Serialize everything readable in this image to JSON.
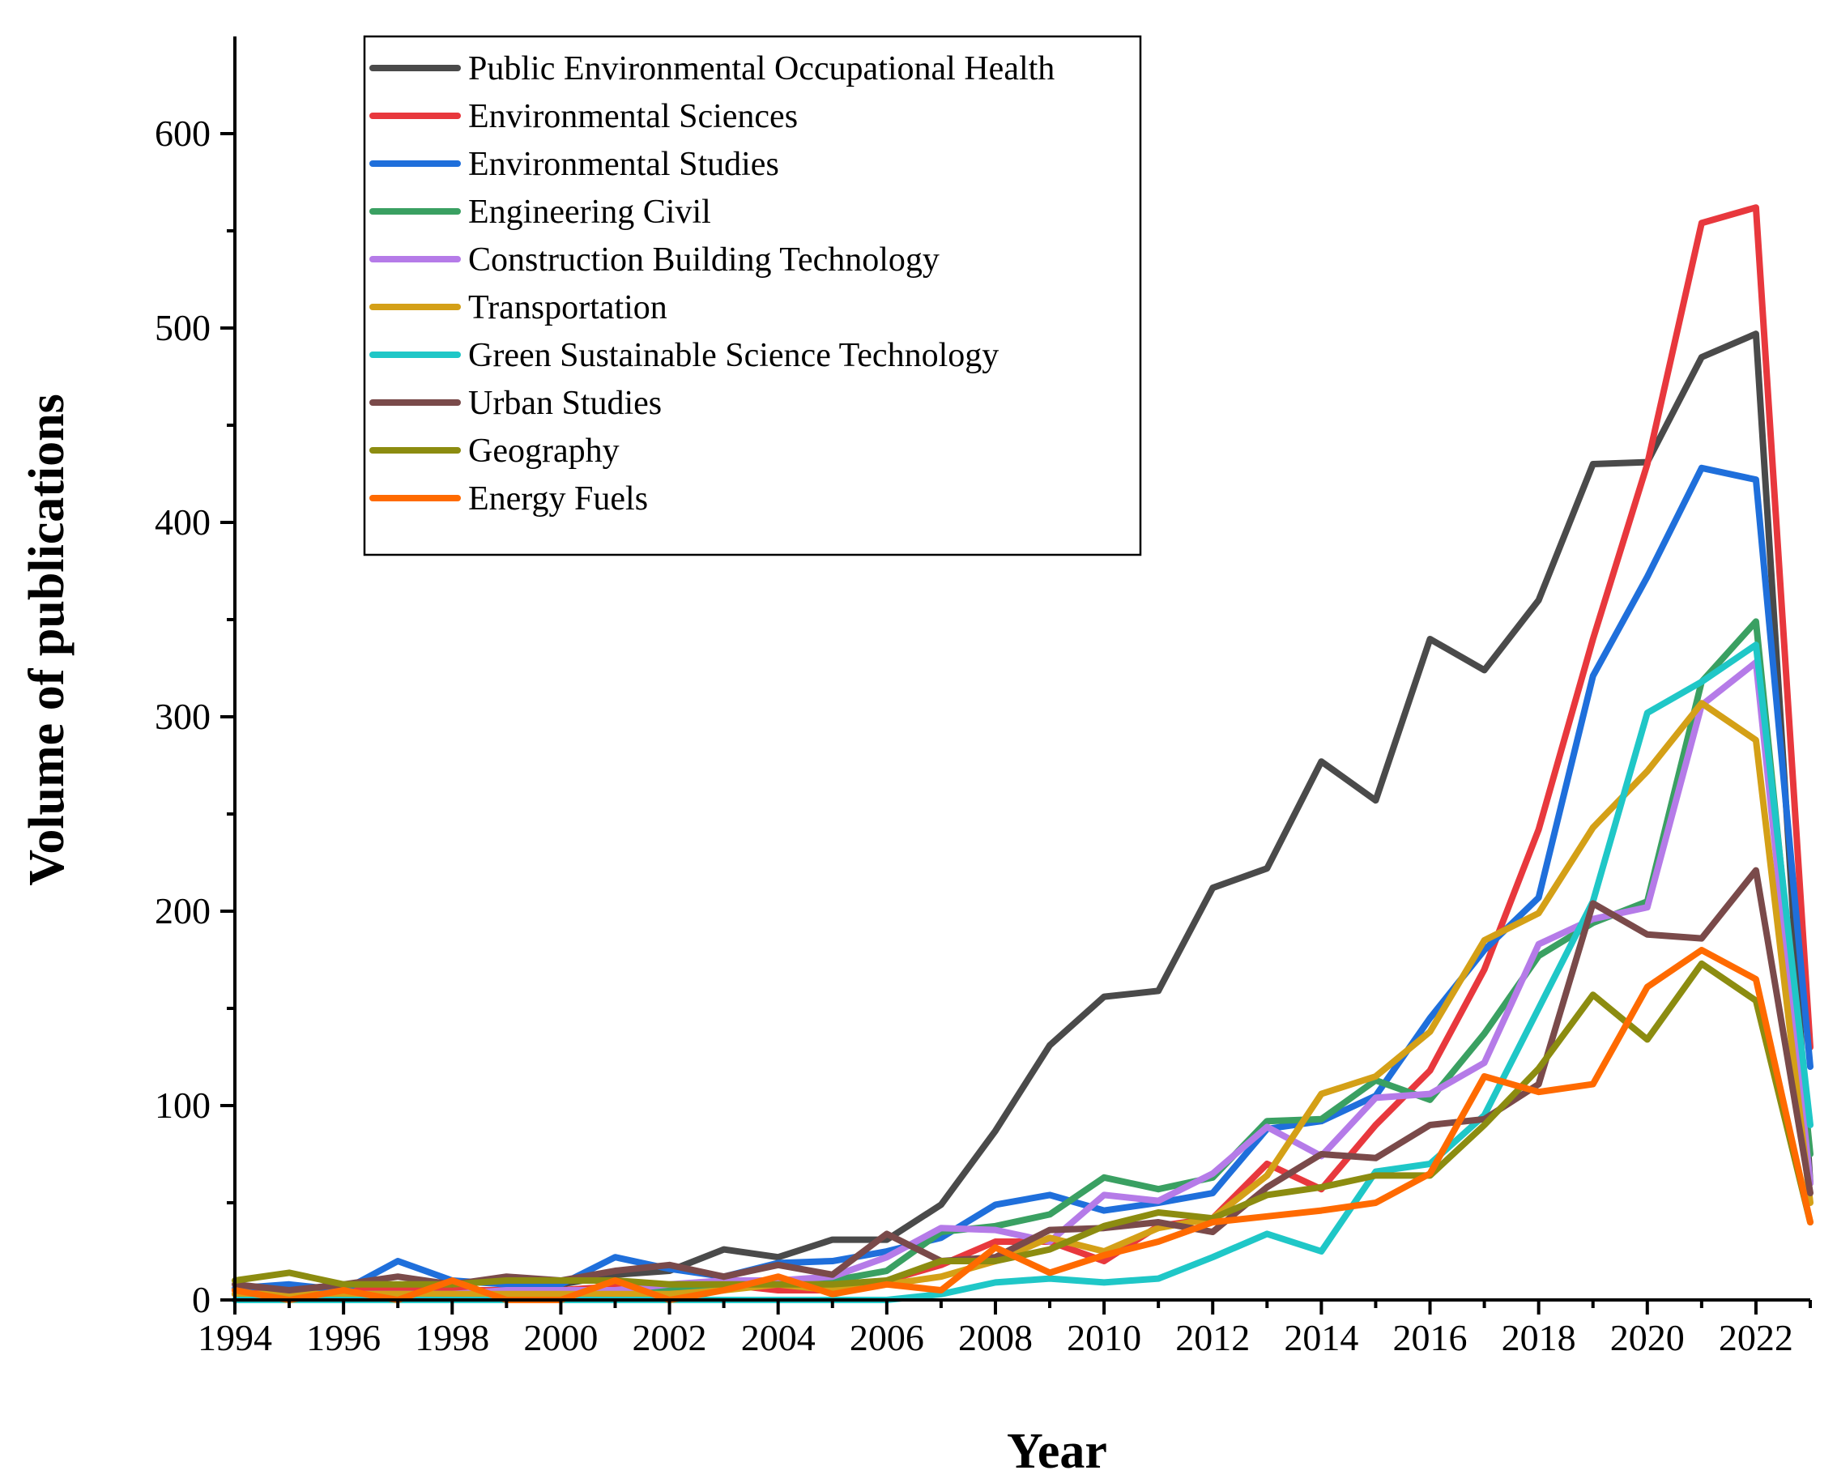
{
  "chart_data": {
    "type": "line",
    "title": "",
    "xlabel": "Year",
    "ylabel": "Volume of publications",
    "xlim": [
      1994,
      2023
    ],
    "ylim": [
      0,
      650
    ],
    "x_ticks": [
      "1994",
      "1996",
      "1998",
      "2000",
      "2002",
      "2004",
      "2006",
      "2008",
      "2010",
      "2012",
      "2014",
      "2016",
      "2018",
      "2020",
      "2022"
    ],
    "y_ticks": [
      "0",
      "100",
      "200",
      "300",
      "400",
      "500",
      "600"
    ],
    "legend_position": "top-left",
    "x": [
      1994,
      1995,
      1996,
      1997,
      1998,
      1999,
      2000,
      2001,
      2002,
      2003,
      2004,
      2005,
      2006,
      2007,
      2008,
      2009,
      2010,
      2011,
      2012,
      2013,
      2014,
      2015,
      2016,
      2017,
      2018,
      2019,
      2020,
      2021,
      2022,
      2023
    ],
    "series": [
      {
        "name": "Public Environmental Occupational Health",
        "color": "#4a4a4a",
        "values": [
          5,
          3,
          8,
          5,
          8,
          10,
          8,
          13,
          15,
          26,
          22,
          31,
          31,
          49,
          87,
          131,
          156,
          159,
          212,
          222,
          277,
          257,
          340,
          324,
          360,
          430,
          431,
          485,
          497,
          60
        ]
      },
      {
        "name": "Environmental Sciences",
        "color": "#e8383d",
        "values": [
          5,
          2,
          5,
          5,
          5,
          5,
          5,
          7,
          5,
          8,
          5,
          5,
          10,
          18,
          30,
          30,
          20,
          38,
          42,
          70,
          57,
          90,
          118,
          170,
          242,
          340,
          430,
          554,
          562,
          130
        ]
      },
      {
        "name": "Environmental Studies",
        "color": "#1f6fdb",
        "values": [
          6,
          8,
          5,
          20,
          10,
          8,
          8,
          22,
          16,
          12,
          19,
          20,
          25,
          32,
          49,
          54,
          46,
          50,
          55,
          88,
          92,
          105,
          145,
          180,
          207,
          321,
          372,
          428,
          422,
          120
        ]
      },
      {
        "name": "Engineering Civil",
        "color": "#3aa062",
        "values": [
          3,
          3,
          3,
          3,
          3,
          3,
          3,
          3,
          5,
          8,
          10,
          10,
          15,
          35,
          38,
          44,
          63,
          57,
          63,
          92,
          93,
          113,
          103,
          137,
          177,
          194,
          205,
          318,
          349,
          75
        ]
      },
      {
        "name": "Construction Building Technology",
        "color": "#b57be8",
        "values": [
          3,
          2,
          3,
          3,
          3,
          5,
          5,
          5,
          8,
          10,
          10,
          12,
          22,
          37,
          36,
          30,
          54,
          51,
          65,
          89,
          74,
          104,
          106,
          122,
          183,
          196,
          202,
          306,
          328,
          60
        ]
      },
      {
        "name": "Transportation",
        "color": "#d4a017",
        "values": [
          3,
          3,
          3,
          3,
          3,
          3,
          3,
          3,
          3,
          5,
          8,
          5,
          8,
          12,
          20,
          32,
          25,
          37,
          42,
          64,
          106,
          115,
          138,
          185,
          199,
          243,
          272,
          307,
          288,
          50
        ]
      },
      {
        "name": "Green Sustainable Science Technology",
        "color": "#1fc7c7",
        "values": [
          0,
          0,
          0,
          0,
          0,
          0,
          0,
          0,
          0,
          0,
          0,
          0,
          0,
          3,
          9,
          11,
          9,
          11,
          22,
          34,
          25,
          66,
          70,
          95,
          150,
          205,
          302,
          318,
          337,
          90
        ]
      },
      {
        "name": "Urban Studies",
        "color": "#7a4a4a",
        "values": [
          8,
          5,
          8,
          12,
          8,
          12,
          10,
          15,
          18,
          12,
          18,
          13,
          34,
          20,
          22,
          36,
          37,
          40,
          35,
          58,
          75,
          73,
          90,
          93,
          111,
          204,
          188,
          186,
          221,
          55
        ]
      },
      {
        "name": "Geography",
        "color": "#8c8c10",
        "values": [
          10,
          14,
          8,
          8,
          8,
          10,
          10,
          10,
          8,
          8,
          8,
          8,
          10,
          20,
          20,
          26,
          38,
          45,
          42,
          54,
          58,
          64,
          64,
          90,
          119,
          157,
          134,
          173,
          154,
          40
        ]
      },
      {
        "name": "Energy Fuels",
        "color": "#ff6a00",
        "values": [
          5,
          0,
          5,
          0,
          10,
          0,
          0,
          10,
          0,
          5,
          12,
          3,
          8,
          5,
          27,
          14,
          23,
          30,
          40,
          43,
          46,
          50,
          65,
          115,
          107,
          111,
          161,
          180,
          165,
          40
        ]
      }
    ]
  }
}
